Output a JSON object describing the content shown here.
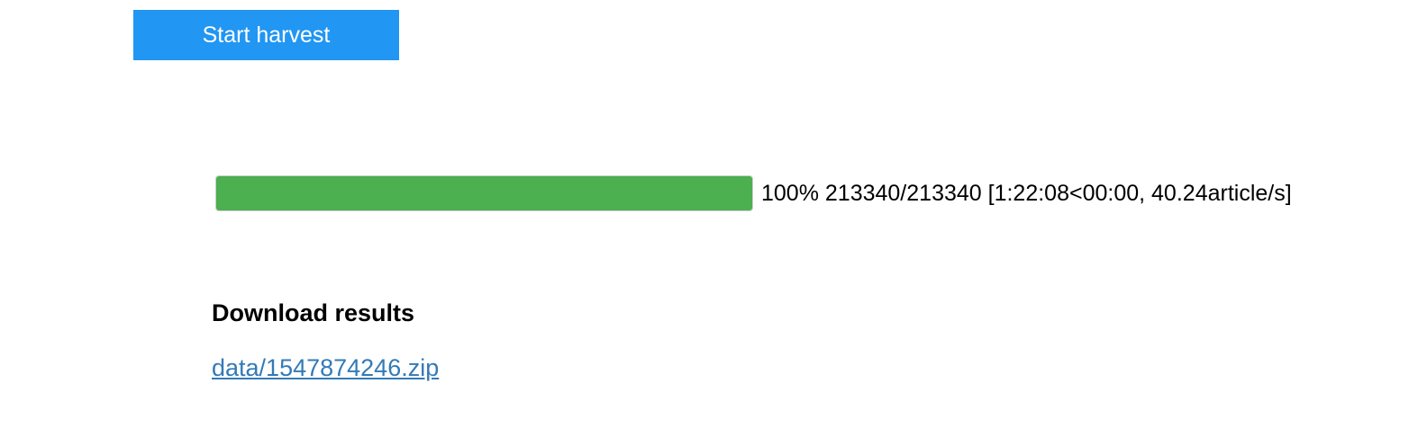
{
  "harvest": {
    "start_label": "Start harvest",
    "button_color": "#2196f3"
  },
  "progress": {
    "percent": 100,
    "fill_color": "#4caf50",
    "status_text": "100% 213340/213340 [1:22:08<00:00, 40.24article/s]"
  },
  "results": {
    "heading": "Download results",
    "link_text": "data/1547874246.zip",
    "link_color": "#337ab7"
  }
}
